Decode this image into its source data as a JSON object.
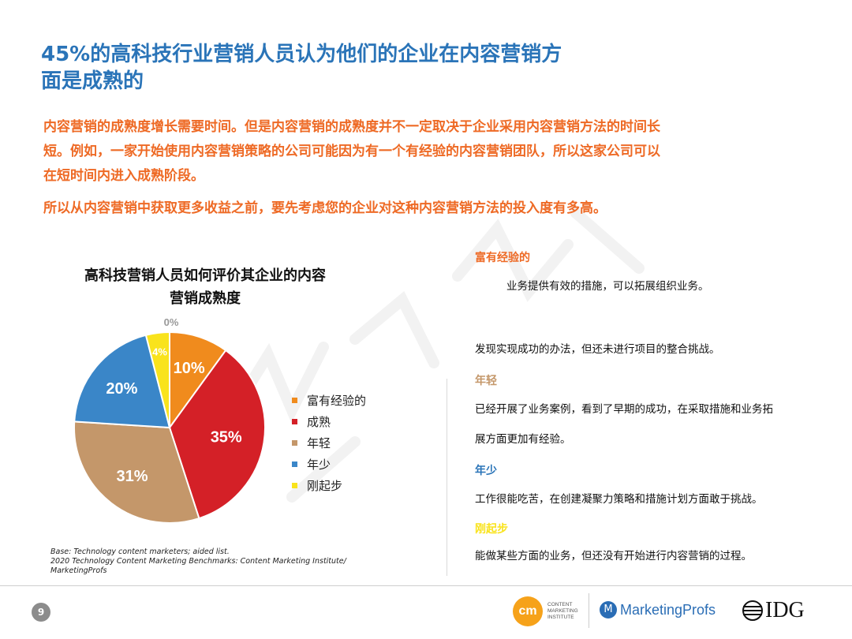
{
  "title_line1": "45%的高科技行业营销人员认为他们的企业在内容营销方",
  "title_line2": "面是成熟的",
  "intro": {
    "p1_line1": "内容营销的成熟度增长需要时间。但是内容营销的成熟度并不一定取决于企业采用内容营销方法的时间长",
    "p1_line2": "短。例如，一家开始使用内容营销策略的公司可能因为有一个有经验的内容营销团队，所以这家公司可以",
    "p1_line3": "在短时间内进入成熟阶段。",
    "p2": "所以从内容营销中获取更多收益之前，要先考虑您的企业对这种内容营销方法的投入度有多高。"
  },
  "chart_data": {
    "type": "pie",
    "title_line1": "高科技营销人员如何评价其企业的内容",
    "title_line2": "营销成熟度",
    "categories": [
      "富有经验的",
      "成熟",
      "年轻",
      "年少",
      "刚起步",
      ""
    ],
    "values": [
      10,
      35,
      31,
      20,
      4,
      0
    ],
    "labels": [
      "10%",
      "35%",
      "31%",
      "20%",
      "4%",
      "0%"
    ],
    "colors": [
      "#f08b1d",
      "#d42027",
      "#c4976a",
      "#3a86c8",
      "#f9e31c",
      "#f9e31c"
    ],
    "label_colors": [
      "#ffffff",
      "#ffffff",
      "#ffffff",
      "#ffffff",
      "#ffffff",
      "#999999"
    ],
    "legend_position": "right",
    "source_line1": "Base: Technology content marketers; aided list.",
    "source_line2": "2020 Technology Content Marketing Benchmarks: Content Marketing Institute/",
    "source_line3": "MarketingProfs"
  },
  "descriptions": [
    {
      "label": "富有经验的",
      "color": "#ee6a25",
      "text": "业务提供有效的措施，可以拓展组织业务。"
    },
    {
      "label": "",
      "color": "#ee6a25",
      "text": "发现实现成功的办法，但还未进行项目的整合挑战。"
    },
    {
      "label": "年轻",
      "color": "#c4976a",
      "text": "已经开展了业务案例，看到了早期的成功，在采取措施和业务拓"
    },
    {
      "label": "",
      "color": "#c4976a",
      "text": "展方面更加有经验。"
    },
    {
      "label": "年少",
      "color": "#2a74b8",
      "text": "工作很能吃苦，在创建凝聚力策略和措施计划方面敢于挑战。"
    },
    {
      "label": "刚起步",
      "color": "#f9e31c",
      "text": "能做某些方面的业务，但还没有开始进行内容营销的过程。"
    }
  ],
  "footer": {
    "page_number": "9",
    "cmi_badge": "cm",
    "cmi_text": "CONTENT\nMARKETING\nINSTITUTE",
    "mp_icon": "M",
    "mp_text": "MarketingProfs",
    "idg_text": "IDG"
  },
  "icons": {
    "legend_marker": "square",
    "mp_logo": "marketingprofs-globe-icon",
    "idg_logo": "idg-globe-icon"
  }
}
